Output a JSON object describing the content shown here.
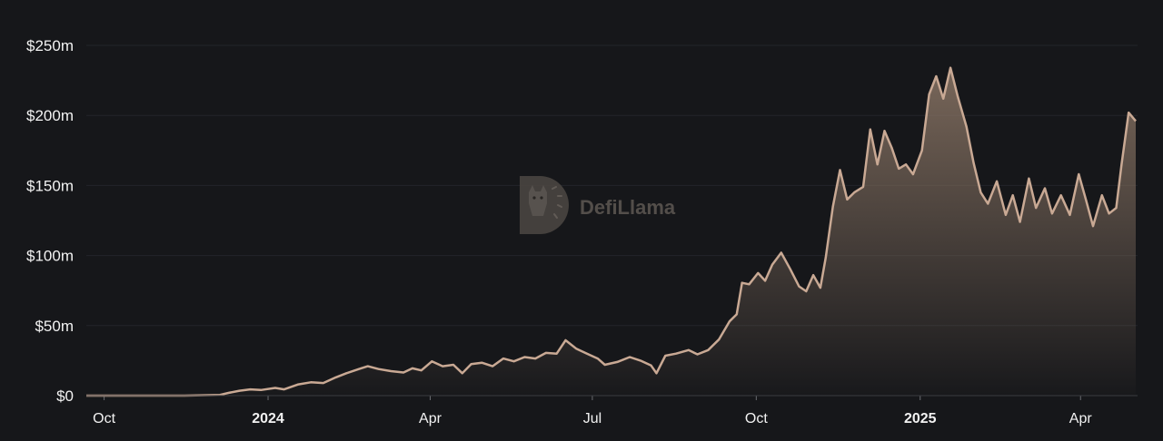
{
  "watermark": {
    "text": "DefiLlama",
    "logo_icon": "llama-logo-icon"
  },
  "colors": {
    "background": "#16171a",
    "line": "#c9a994",
    "area_top": "#8a7565",
    "grid": "#23252a",
    "text": "#f2f2f2"
  },
  "chart_data": {
    "type": "area",
    "title": "",
    "xlabel": "",
    "ylabel": "",
    "ylim": [
      0,
      250000000
    ],
    "yticks": [
      {
        "value": 0,
        "label": "$0"
      },
      {
        "value": 50000000,
        "label": "$50m"
      },
      {
        "value": 100000000,
        "label": "$100m"
      },
      {
        "value": 150000000,
        "label": "$150m"
      },
      {
        "value": 200000000,
        "label": "$200m"
      },
      {
        "value": 250000000,
        "label": "$250m"
      }
    ],
    "xlim": [
      "2023-09-21",
      "2025-05-03"
    ],
    "xticks": [
      {
        "date": "2023-10-01",
        "label": "Oct",
        "major": false
      },
      {
        "date": "2024-01-01",
        "label": "2024",
        "major": true
      },
      {
        "date": "2024-04-01",
        "label": "Apr",
        "major": false
      },
      {
        "date": "2024-07-01",
        "label": "Jul",
        "major": false
      },
      {
        "date": "2024-10-01",
        "label": "Oct",
        "major": false
      },
      {
        "date": "2025-01-01",
        "label": "2025",
        "major": true
      },
      {
        "date": "2025-04-01",
        "label": "Apr",
        "major": false
      }
    ],
    "grid": true,
    "series": [
      {
        "values": [
          [
            "2023-09-21",
            0
          ],
          [
            "2023-10-15",
            0
          ],
          [
            "2023-11-15",
            0
          ],
          [
            "2023-12-05",
            500000
          ],
          [
            "2023-12-10",
            2000000
          ],
          [
            "2023-12-16",
            3500000
          ],
          [
            "2023-12-22",
            4500000
          ],
          [
            "2023-12-28",
            4000000
          ],
          [
            "2024-01-05",
            5500000
          ],
          [
            "2024-01-10",
            4500000
          ],
          [
            "2024-01-18",
            8000000
          ],
          [
            "2024-01-25",
            9500000
          ],
          [
            "2024-02-01",
            9000000
          ],
          [
            "2024-02-08",
            13000000
          ],
          [
            "2024-02-14",
            16000000
          ],
          [
            "2024-02-21",
            19000000
          ],
          [
            "2024-02-26",
            21000000
          ],
          [
            "2024-03-03",
            19000000
          ],
          [
            "2024-03-10",
            17500000
          ],
          [
            "2024-03-17",
            16500000
          ],
          [
            "2024-03-22",
            19500000
          ],
          [
            "2024-03-27",
            18000000
          ],
          [
            "2024-04-02",
            24500000
          ],
          [
            "2024-04-08",
            21000000
          ],
          [
            "2024-04-14",
            22000000
          ],
          [
            "2024-04-19",
            16000000
          ],
          [
            "2024-04-24",
            22500000
          ],
          [
            "2024-04-30",
            23500000
          ],
          [
            "2024-05-06",
            21000000
          ],
          [
            "2024-05-12",
            26500000
          ],
          [
            "2024-05-18",
            24500000
          ],
          [
            "2024-05-24",
            27500000
          ],
          [
            "2024-05-30",
            26500000
          ],
          [
            "2024-06-05",
            30500000
          ],
          [
            "2024-06-11",
            30000000
          ],
          [
            "2024-06-16",
            39500000
          ],
          [
            "2024-06-22",
            33500000
          ],
          [
            "2024-06-28",
            30000000
          ],
          [
            "2024-07-04",
            26500000
          ],
          [
            "2024-07-08",
            22000000
          ],
          [
            "2024-07-15",
            24000000
          ],
          [
            "2024-07-22",
            27500000
          ],
          [
            "2024-07-28",
            25000000
          ],
          [
            "2024-08-03",
            21500000
          ],
          [
            "2024-08-06",
            16000000
          ],
          [
            "2024-08-11",
            28500000
          ],
          [
            "2024-08-17",
            30000000
          ],
          [
            "2024-08-24",
            32500000
          ],
          [
            "2024-08-29",
            29500000
          ],
          [
            "2024-09-04",
            32500000
          ],
          [
            "2024-09-10",
            40000000
          ],
          [
            "2024-09-16",
            53000000
          ],
          [
            "2024-09-20",
            58000000
          ],
          [
            "2024-09-23",
            80500000
          ],
          [
            "2024-09-27",
            79500000
          ],
          [
            "2024-10-02",
            87500000
          ],
          [
            "2024-10-06",
            82000000
          ],
          [
            "2024-10-10",
            93500000
          ],
          [
            "2024-10-15",
            102000000
          ],
          [
            "2024-10-20",
            90500000
          ],
          [
            "2024-10-25",
            78000000
          ],
          [
            "2024-10-29",
            74500000
          ],
          [
            "2024-11-02",
            86000000
          ],
          [
            "2024-11-06",
            77000000
          ],
          [
            "2024-11-09",
            98500000
          ],
          [
            "2024-11-13",
            135000000
          ],
          [
            "2024-11-17",
            161000000
          ],
          [
            "2024-11-21",
            140000000
          ],
          [
            "2024-11-25",
            145000000
          ],
          [
            "2024-11-30",
            149000000
          ],
          [
            "2024-12-04",
            190000000
          ],
          [
            "2024-12-08",
            165000000
          ],
          [
            "2024-12-12",
            189000000
          ],
          [
            "2024-12-16",
            177000000
          ],
          [
            "2024-12-20",
            162000000
          ],
          [
            "2024-12-24",
            165000000
          ],
          [
            "2024-12-28",
            158000000
          ],
          [
            "2025-01-02",
            175000000
          ],
          [
            "2025-01-06",
            215000000
          ],
          [
            "2025-01-10",
            228000000
          ],
          [
            "2025-01-14",
            212000000
          ],
          [
            "2025-01-18",
            234000000
          ],
          [
            "2025-01-22",
            214000000
          ],
          [
            "2025-01-27",
            192000000
          ],
          [
            "2025-01-31",
            166000000
          ],
          [
            "2025-02-04",
            145000000
          ],
          [
            "2025-02-08",
            137000000
          ],
          [
            "2025-02-13",
            153000000
          ],
          [
            "2025-02-18",
            129000000
          ],
          [
            "2025-02-22",
            143000000
          ],
          [
            "2025-02-26",
            124000000
          ],
          [
            "2025-03-03",
            155000000
          ],
          [
            "2025-03-07",
            134000000
          ],
          [
            "2025-03-12",
            148000000
          ],
          [
            "2025-03-16",
            130000000
          ],
          [
            "2025-03-21",
            143000000
          ],
          [
            "2025-03-26",
            129000000
          ],
          [
            "2025-03-31",
            158000000
          ],
          [
            "2025-04-04",
            140000000
          ],
          [
            "2025-04-08",
            121000000
          ],
          [
            "2025-04-13",
            143000000
          ],
          [
            "2025-04-17",
            130000000
          ],
          [
            "2025-04-21",
            134000000
          ],
          [
            "2025-04-24",
            165000000
          ],
          [
            "2025-04-28",
            202000000
          ],
          [
            "2025-05-02",
            196000000
          ]
        ]
      }
    ]
  }
}
